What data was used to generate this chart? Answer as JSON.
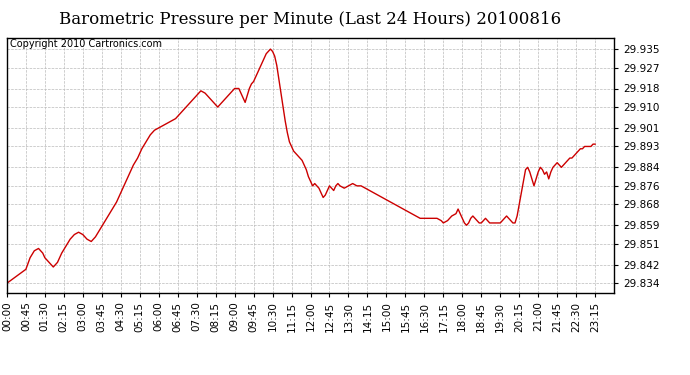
{
  "title": "Barometric Pressure per Minute (Last 24 Hours) 20100816",
  "copyright": "Copyright 2010 Cartronics.com",
  "line_color": "#cc0000",
  "background_color": "#ffffff",
  "grid_color": "#bbbbbb",
  "yticks": [
    29.834,
    29.842,
    29.851,
    29.859,
    29.868,
    29.876,
    29.884,
    29.893,
    29.901,
    29.91,
    29.918,
    29.927,
    29.935
  ],
  "ylim": [
    29.83,
    29.94
  ],
  "xtick_labels": [
    "00:00",
    "00:45",
    "01:30",
    "02:15",
    "03:00",
    "03:45",
    "04:30",
    "05:15",
    "06:00",
    "06:45",
    "07:30",
    "08:15",
    "09:00",
    "09:45",
    "10:30",
    "11:15",
    "12:00",
    "12:45",
    "13:30",
    "14:15",
    "15:00",
    "15:45",
    "16:30",
    "17:15",
    "18:00",
    "18:45",
    "19:30",
    "20:15",
    "21:00",
    "21:45",
    "22:30",
    "23:15"
  ],
  "time_points": [
    0,
    45,
    90,
    135,
    180,
    225,
    270,
    315,
    360,
    405,
    450,
    495,
    540,
    585,
    630,
    675,
    720,
    765,
    810,
    855,
    900,
    945,
    990,
    1035,
    1080,
    1125,
    1170,
    1215,
    1260,
    1305,
    1350,
    1395
  ],
  "xlim": [
    0,
    1440
  ],
  "pressure_curve": [
    [
      0,
      29.834
    ],
    [
      15,
      29.836
    ],
    [
      30,
      29.838
    ],
    [
      45,
      29.84
    ],
    [
      55,
      29.845
    ],
    [
      65,
      29.848
    ],
    [
      75,
      29.849
    ],
    [
      85,
      29.847
    ],
    [
      90,
      29.845
    ],
    [
      100,
      29.843
    ],
    [
      110,
      29.841
    ],
    [
      120,
      29.843
    ],
    [
      130,
      29.847
    ],
    [
      140,
      29.85
    ],
    [
      150,
      29.853
    ],
    [
      160,
      29.855
    ],
    [
      170,
      29.856
    ],
    [
      180,
      29.855
    ],
    [
      190,
      29.853
    ],
    [
      200,
      29.852
    ],
    [
      210,
      29.854
    ],
    [
      220,
      29.857
    ],
    [
      230,
      29.86
    ],
    [
      240,
      29.863
    ],
    [
      250,
      29.866
    ],
    [
      260,
      29.869
    ],
    [
      270,
      29.873
    ],
    [
      280,
      29.877
    ],
    [
      290,
      29.881
    ],
    [
      300,
      29.885
    ],
    [
      310,
      29.888
    ],
    [
      320,
      29.892
    ],
    [
      330,
      29.895
    ],
    [
      340,
      29.898
    ],
    [
      350,
      29.9
    ],
    [
      360,
      29.901
    ],
    [
      370,
      29.902
    ],
    [
      380,
      29.903
    ],
    [
      390,
      29.904
    ],
    [
      400,
      29.905
    ],
    [
      410,
      29.907
    ],
    [
      420,
      29.909
    ],
    [
      430,
      29.911
    ],
    [
      440,
      29.913
    ],
    [
      450,
      29.915
    ],
    [
      460,
      29.917
    ],
    [
      470,
      29.916
    ],
    [
      480,
      29.914
    ],
    [
      490,
      29.912
    ],
    [
      500,
      29.91
    ],
    [
      510,
      29.912
    ],
    [
      520,
      29.914
    ],
    [
      530,
      29.916
    ],
    [
      540,
      29.918
    ],
    [
      550,
      29.918
    ],
    [
      555,
      29.916
    ],
    [
      560,
      29.914
    ],
    [
      565,
      29.912
    ],
    [
      570,
      29.915
    ],
    [
      575,
      29.918
    ],
    [
      580,
      29.92
    ],
    [
      585,
      29.921
    ],
    [
      590,
      29.923
    ],
    [
      595,
      29.925
    ],
    [
      600,
      29.927
    ],
    [
      605,
      29.929
    ],
    [
      610,
      29.931
    ],
    [
      615,
      29.933
    ],
    [
      620,
      29.934
    ],
    [
      625,
      29.935
    ],
    [
      630,
      29.934
    ],
    [
      635,
      29.932
    ],
    [
      640,
      29.928
    ],
    [
      645,
      29.922
    ],
    [
      650,
      29.916
    ],
    [
      655,
      29.91
    ],
    [
      660,
      29.904
    ],
    [
      665,
      29.899
    ],
    [
      670,
      29.895
    ],
    [
      675,
      29.893
    ],
    [
      680,
      29.891
    ],
    [
      690,
      29.889
    ],
    [
      700,
      29.887
    ],
    [
      710,
      29.883
    ],
    [
      715,
      29.88
    ],
    [
      720,
      29.878
    ],
    [
      725,
      29.876
    ],
    [
      730,
      29.877
    ],
    [
      735,
      29.876
    ],
    [
      740,
      29.875
    ],
    [
      745,
      29.873
    ],
    [
      750,
      29.871
    ],
    [
      755,
      29.872
    ],
    [
      760,
      29.874
    ],
    [
      765,
      29.876
    ],
    [
      770,
      29.875
    ],
    [
      775,
      29.874
    ],
    [
      780,
      29.876
    ],
    [
      785,
      29.877
    ],
    [
      790,
      29.876
    ],
    [
      800,
      29.875
    ],
    [
      810,
      29.876
    ],
    [
      820,
      29.877
    ],
    [
      830,
      29.876
    ],
    [
      840,
      29.876
    ],
    [
      850,
      29.875
    ],
    [
      860,
      29.874
    ],
    [
      870,
      29.873
    ],
    [
      880,
      29.872
    ],
    [
      890,
      29.871
    ],
    [
      900,
      29.87
    ],
    [
      910,
      29.869
    ],
    [
      920,
      29.868
    ],
    [
      930,
      29.867
    ],
    [
      940,
      29.866
    ],
    [
      950,
      29.865
    ],
    [
      960,
      29.864
    ],
    [
      970,
      29.863
    ],
    [
      980,
      29.862
    ],
    [
      990,
      29.862
    ],
    [
      1000,
      29.862
    ],
    [
      1010,
      29.862
    ],
    [
      1020,
      29.862
    ],
    [
      1030,
      29.861
    ],
    [
      1035,
      29.86
    ],
    [
      1045,
      29.861
    ],
    [
      1055,
      29.863
    ],
    [
      1065,
      29.864
    ],
    [
      1070,
      29.866
    ],
    [
      1075,
      29.864
    ],
    [
      1080,
      29.862
    ],
    [
      1085,
      29.86
    ],
    [
      1090,
      29.859
    ],
    [
      1095,
      29.86
    ],
    [
      1100,
      29.862
    ],
    [
      1105,
      29.863
    ],
    [
      1110,
      29.862
    ],
    [
      1115,
      29.861
    ],
    [
      1120,
      29.86
    ],
    [
      1125,
      29.86
    ],
    [
      1130,
      29.861
    ],
    [
      1135,
      29.862
    ],
    [
      1140,
      29.861
    ],
    [
      1145,
      29.86
    ],
    [
      1150,
      29.86
    ],
    [
      1155,
      29.86
    ],
    [
      1160,
      29.86
    ],
    [
      1165,
      29.86
    ],
    [
      1170,
      29.86
    ],
    [
      1175,
      29.861
    ],
    [
      1180,
      29.862
    ],
    [
      1185,
      29.863
    ],
    [
      1190,
      29.862
    ],
    [
      1195,
      29.861
    ],
    [
      1200,
      29.86
    ],
    [
      1205,
      29.86
    ],
    [
      1210,
      29.863
    ],
    [
      1215,
      29.868
    ],
    [
      1220,
      29.873
    ],
    [
      1225,
      29.878
    ],
    [
      1230,
      29.883
    ],
    [
      1235,
      29.884
    ],
    [
      1240,
      29.882
    ],
    [
      1245,
      29.879
    ],
    [
      1250,
      29.876
    ],
    [
      1255,
      29.879
    ],
    [
      1260,
      29.882
    ],
    [
      1265,
      29.884
    ],
    [
      1270,
      29.883
    ],
    [
      1275,
      29.881
    ],
    [
      1280,
      29.882
    ],
    [
      1285,
      29.879
    ],
    [
      1290,
      29.882
    ],
    [
      1295,
      29.884
    ],
    [
      1300,
      29.885
    ],
    [
      1305,
      29.886
    ],
    [
      1310,
      29.885
    ],
    [
      1315,
      29.884
    ],
    [
      1320,
      29.885
    ],
    [
      1325,
      29.886
    ],
    [
      1330,
      29.887
    ],
    [
      1335,
      29.888
    ],
    [
      1340,
      29.888
    ],
    [
      1345,
      29.889
    ],
    [
      1350,
      29.89
    ],
    [
      1355,
      29.891
    ],
    [
      1360,
      29.892
    ],
    [
      1365,
      29.892
    ],
    [
      1370,
      29.893
    ],
    [
      1375,
      29.893
    ],
    [
      1380,
      29.893
    ],
    [
      1385,
      29.893
    ],
    [
      1390,
      29.894
    ],
    [
      1395,
      29.894
    ]
  ],
  "title_fontsize": 12,
  "tick_fontsize": 7.5,
  "copyright_fontsize": 7
}
